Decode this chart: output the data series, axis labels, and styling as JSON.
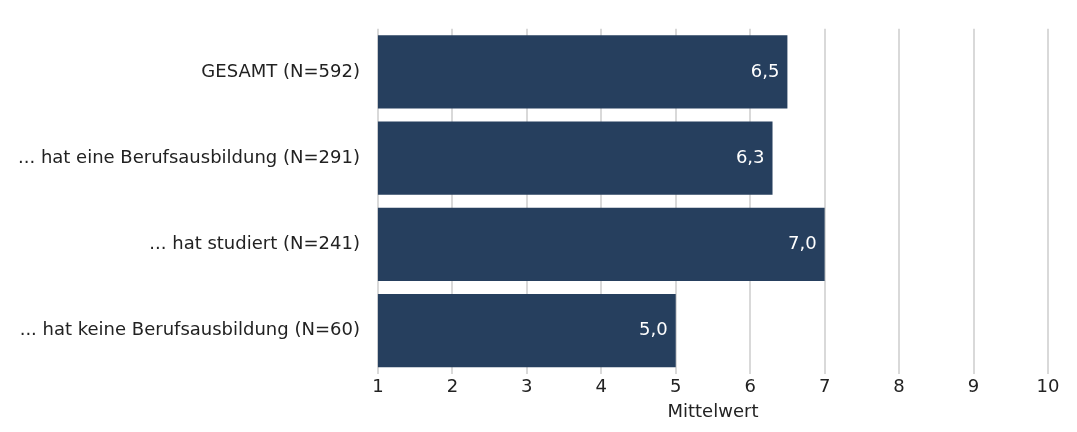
{
  "chart_data": {
    "type": "bar",
    "orientation": "horizontal",
    "xlabel": "Mittelwert",
    "categories": [
      "GESAMT (N=592)",
      "... hat eine Berufsausbildung (N=291)",
      "... hat studiert (N=241)",
      "... hat keine Berufsausbildung (N=60)"
    ],
    "values": [
      6.5,
      6.3,
      7.0,
      5.0
    ],
    "value_labels": [
      "6,5",
      "6,3",
      "7,0",
      "5,0"
    ],
    "color": "#263f5e",
    "xlim": [
      1,
      10
    ],
    "xticks": [
      1,
      2,
      3,
      4,
      5,
      6,
      7,
      8,
      9,
      10
    ],
    "grid": "x",
    "legend": false
  }
}
